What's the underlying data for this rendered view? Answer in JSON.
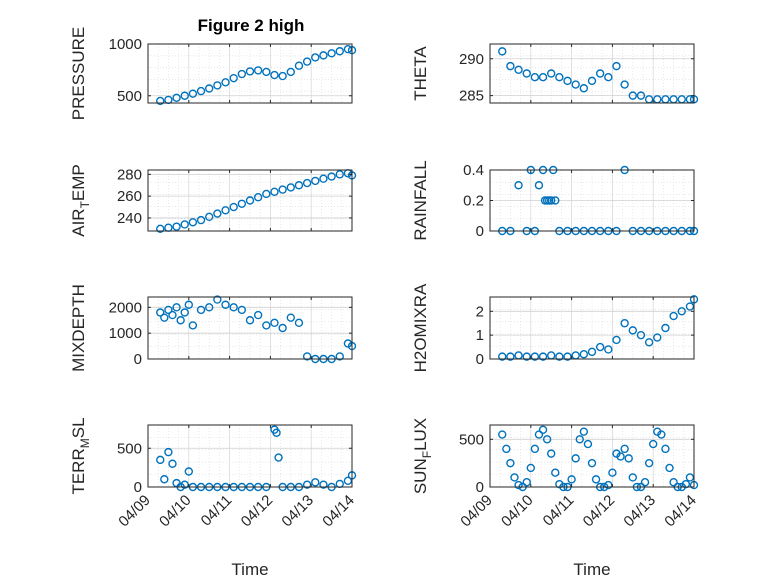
{
  "figure": {
    "title": "Figure 2 high",
    "marker_color": "#0072BD",
    "grid": "major and minor, dotted",
    "x_tick_labels": [
      "04/09",
      "04/10",
      "04/11",
      "04/12",
      "04/13",
      "04/14"
    ],
    "xlabel": "Time"
  },
  "chart_data": [
    {
      "type": "scatter",
      "ylabel_main": "PRESSURE",
      "ylabel_sub": "",
      "ylabel_rest": "",
      "xlim": [
        0,
        5
      ],
      "ylim": [
        430,
        1000
      ],
      "yticks": [
        500,
        1000
      ],
      "x": [
        0.3,
        0.5,
        0.7,
        0.9,
        1.1,
        1.3,
        1.5,
        1.7,
        1.9,
        2.1,
        2.3,
        2.5,
        2.7,
        2.9,
        3.1,
        3.3,
        3.5,
        3.7,
        3.9,
        4.1,
        4.3,
        4.5,
        4.7,
        4.9,
        5.0
      ],
      "y": [
        450,
        460,
        480,
        500,
        520,
        545,
        570,
        600,
        630,
        670,
        710,
        735,
        745,
        730,
        700,
        690,
        730,
        790,
        830,
        870,
        890,
        910,
        930,
        950,
        940
      ]
    },
    {
      "type": "scatter",
      "ylabel_main": "THETA",
      "ylabel_sub": "",
      "ylabel_rest": "",
      "xlim": [
        0,
        5
      ],
      "ylim": [
        284,
        292
      ],
      "yticks": [
        285,
        290
      ],
      "x": [
        0.3,
        0.5,
        0.7,
        0.9,
        1.1,
        1.3,
        1.5,
        1.7,
        1.9,
        2.1,
        2.3,
        2.5,
        2.7,
        2.9,
        3.1,
        3.3,
        3.5,
        3.7,
        3.9,
        4.1,
        4.3,
        4.5,
        4.7,
        4.9,
        5.0
      ],
      "y": [
        291,
        289,
        288.5,
        288,
        287.5,
        287.5,
        288,
        287.5,
        287,
        286.5,
        286,
        287,
        288,
        287.5,
        289,
        286.5,
        285,
        285,
        284.5,
        284.5,
        284.5,
        284.5,
        284.5,
        284.5,
        284.5
      ]
    },
    {
      "type": "scatter",
      "ylabel_main": "AIR",
      "ylabel_sub": "T",
      "ylabel_rest": "EMP",
      "xlim": [
        0,
        5
      ],
      "ylim": [
        228,
        284
      ],
      "yticks": [
        240,
        260,
        280
      ],
      "x": [
        0.3,
        0.5,
        0.7,
        0.9,
        1.1,
        1.3,
        1.5,
        1.7,
        1.9,
        2.1,
        2.3,
        2.5,
        2.7,
        2.9,
        3.1,
        3.3,
        3.5,
        3.7,
        3.9,
        4.1,
        4.3,
        4.5,
        4.7,
        4.9,
        5.0
      ],
      "y": [
        230,
        231,
        232,
        234,
        236,
        238,
        241,
        244,
        247,
        250,
        253,
        256,
        259,
        262,
        264,
        266,
        268,
        270,
        272,
        274,
        276,
        278,
        280,
        281,
        279
      ]
    },
    {
      "type": "scatter",
      "ylabel_main": "RAINFALL",
      "ylabel_sub": "",
      "ylabel_rest": "",
      "xlim": [
        0,
        5
      ],
      "ylim": [
        0,
        0.4
      ],
      "yticks": [
        0,
        0.2,
        0.4
      ],
      "x": [
        0.3,
        0.5,
        0.7,
        0.9,
        1.0,
        1.1,
        1.2,
        1.3,
        1.35,
        1.4,
        1.45,
        1.5,
        1.55,
        1.6,
        1.7,
        1.9,
        2.1,
        2.3,
        2.5,
        2.7,
        2.9,
        3.1,
        3.3,
        3.5,
        3.7,
        3.9,
        4.1,
        4.3,
        4.5,
        4.7,
        4.9,
        5.0
      ],
      "y": [
        0,
        0,
        0.3,
        0,
        0.4,
        0,
        0.3,
        0.4,
        0.2,
        0.2,
        0.2,
        0.2,
        0.4,
        0.2,
        0,
        0,
        0,
        0,
        0,
        0,
        0,
        0,
        0.4,
        0,
        0,
        0,
        0,
        0,
        0,
        0,
        0,
        0
      ]
    },
    {
      "type": "scatter",
      "ylabel_main": "MIXDEPTH",
      "ylabel_sub": "",
      "ylabel_rest": "",
      "xlim": [
        0,
        5
      ],
      "ylim": [
        0,
        2400
      ],
      "yticks": [
        0,
        1000,
        2000
      ],
      "x": [
        0.3,
        0.4,
        0.5,
        0.6,
        0.7,
        0.8,
        0.9,
        1.0,
        1.1,
        1.3,
        1.5,
        1.7,
        1.9,
        2.1,
        2.3,
        2.5,
        2.7,
        2.9,
        3.1,
        3.3,
        3.5,
        3.7,
        3.9,
        4.1,
        4.3,
        4.5,
        4.7,
        4.9,
        5.0
      ],
      "y": [
        1800,
        1600,
        1900,
        1700,
        2000,
        1500,
        1800,
        2100,
        1300,
        1900,
        2000,
        2300,
        2100,
        2000,
        1900,
        1500,
        1700,
        1300,
        1400,
        1200,
        1600,
        1400,
        100,
        0,
        0,
        0,
        100,
        600,
        500
      ]
    },
    {
      "type": "scatter",
      "ylabel_main": "H2OMIXRA",
      "ylabel_sub": "",
      "ylabel_rest": "",
      "xlim": [
        0,
        5
      ],
      "ylim": [
        0,
        2.6
      ],
      "yticks": [
        0,
        1,
        2
      ],
      "x": [
        0.3,
        0.5,
        0.7,
        0.9,
        1.1,
        1.3,
        1.5,
        1.7,
        1.9,
        2.1,
        2.3,
        2.5,
        2.7,
        2.9,
        3.1,
        3.3,
        3.5,
        3.7,
        3.9,
        4.1,
        4.3,
        4.5,
        4.7,
        4.9,
        5.0
      ],
      "y": [
        0.1,
        0.1,
        0.15,
        0.1,
        0.1,
        0.1,
        0.15,
        0.1,
        0.1,
        0.15,
        0.2,
        0.3,
        0.5,
        0.4,
        0.8,
        1.5,
        1.2,
        1.0,
        0.7,
        0.9,
        1.3,
        1.8,
        2.0,
        2.2,
        2.5
      ]
    },
    {
      "type": "scatter",
      "ylabel_main": "TERR",
      "ylabel_sub": "M",
      "ylabel_rest": "SL",
      "xlim": [
        0,
        5
      ],
      "ylim": [
        0,
        800
      ],
      "yticks": [
        0,
        500
      ],
      "x": [
        0.3,
        0.4,
        0.5,
        0.6,
        0.7,
        0.8,
        0.9,
        1.0,
        1.1,
        1.3,
        1.5,
        1.7,
        1.9,
        2.1,
        2.3,
        2.5,
        2.7,
        2.9,
        3.1,
        3.15,
        3.2,
        3.3,
        3.5,
        3.7,
        3.9,
        4.1,
        4.3,
        4.5,
        4.7,
        4.9,
        5.0
      ],
      "y": [
        350,
        100,
        450,
        300,
        50,
        0,
        30,
        200,
        0,
        0,
        0,
        0,
        0,
        0,
        0,
        0,
        0,
        0,
        740,
        700,
        380,
        0,
        0,
        0,
        30,
        60,
        30,
        0,
        40,
        80,
        150
      ]
    },
    {
      "type": "scatter",
      "ylabel_main": "SUN",
      "ylabel_sub": "F",
      "ylabel_rest": "LUX",
      "xlim": [
        0,
        5
      ],
      "ylim": [
        0,
        650
      ],
      "yticks": [
        0,
        500
      ],
      "x": [
        0.3,
        0.4,
        0.5,
        0.6,
        0.7,
        0.8,
        0.9,
        1.0,
        1.1,
        1.2,
        1.3,
        1.4,
        1.5,
        1.6,
        1.7,
        1.8,
        1.9,
        2.0,
        2.1,
        2.2,
        2.3,
        2.4,
        2.5,
        2.6,
        2.7,
        2.8,
        2.9,
        3.0,
        3.1,
        3.2,
        3.3,
        3.4,
        3.5,
        3.6,
        3.7,
        3.8,
        3.9,
        4.0,
        4.1,
        4.2,
        4.3,
        4.4,
        4.5,
        4.6,
        4.7,
        4.8,
        4.9,
        5.0
      ],
      "y": [
        550,
        400,
        250,
        100,
        20,
        0,
        50,
        200,
        400,
        550,
        600,
        500,
        350,
        150,
        30,
        0,
        0,
        80,
        300,
        500,
        580,
        450,
        250,
        80,
        0,
        0,
        20,
        150,
        350,
        320,
        400,
        300,
        100,
        0,
        0,
        50,
        250,
        450,
        580,
        550,
        400,
        200,
        50,
        0,
        0,
        30,
        100,
        20
      ]
    }
  ]
}
